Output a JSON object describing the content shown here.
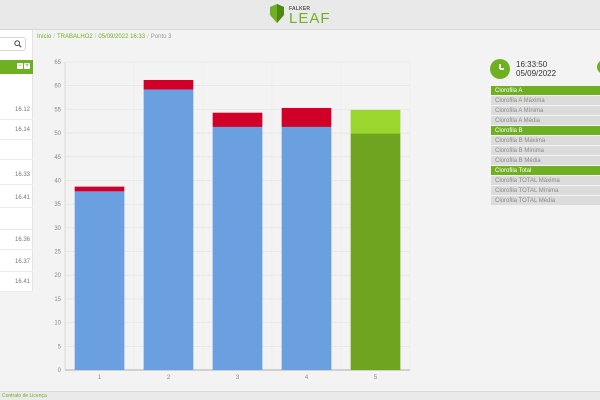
{
  "header": {
    "brand_top": "FALKER",
    "brand_main": "LEAF"
  },
  "sidebar": {
    "items": [
      {
        "value": "16.12"
      },
      {
        "value": "16.14"
      },
      {
        "value": ""
      },
      {
        "value": "16.33"
      },
      {
        "value": "16.41"
      },
      {
        "value": ""
      },
      {
        "value": "16.36"
      },
      {
        "value": "16.37"
      },
      {
        "value": "16.41"
      }
    ]
  },
  "breadcrumb": {
    "items": [
      "Início",
      "TRABALHO2",
      "05/09/2022 16:33",
      "Ponto 3"
    ]
  },
  "info": {
    "time": "16:33:50",
    "date": "05/09/2022"
  },
  "legend": [
    {
      "label": "Clorofila A",
      "kind": "header"
    },
    {
      "label": "Clorofila A Máxima",
      "kind": "item"
    },
    {
      "label": "Clorofila A Mínima",
      "kind": "item"
    },
    {
      "label": "Clorofila A Média",
      "kind": "item"
    },
    {
      "label": "Clorofila B",
      "kind": "header"
    },
    {
      "label": "Clorofila B Máxima",
      "kind": "item"
    },
    {
      "label": "Clorofila B Mínima",
      "kind": "item"
    },
    {
      "label": "Clorofila B Média",
      "kind": "item"
    },
    {
      "label": "Clorofila Total",
      "kind": "header"
    },
    {
      "label": "Clorofila TOTAL Máxima",
      "kind": "item"
    },
    {
      "label": "Clorofila TOTAL Mínima",
      "kind": "item"
    },
    {
      "label": "Clorofila TOTAL Média",
      "kind": "item"
    }
  ],
  "footer": {
    "link": "Contrato de Licença"
  },
  "colors": {
    "accent": "#6fb022",
    "bar_blue": "#6a9fe0",
    "bar_red": "#d10028",
    "bar_total_dark": "#6fa420",
    "bar_total_light": "#9ad62e"
  },
  "chart_data": {
    "type": "bar",
    "stacked": true,
    "categories": [
      "1",
      "2",
      "3",
      "4",
      "5"
    ],
    "ylim": [
      0,
      65
    ],
    "yticks": [
      0,
      5,
      10,
      15,
      20,
      25,
      30,
      35,
      40,
      45,
      50,
      55,
      60,
      65
    ],
    "grid": true,
    "series": [
      {
        "values": [
          37.7,
          59.2,
          51.3,
          51.3,
          0
        ],
        "color": "#6a9fe0"
      },
      {
        "values": [
          1.0,
          2.0,
          3.0,
          4.0,
          0
        ],
        "color": "#d10028"
      },
      {
        "values": [
          0,
          0,
          0,
          0,
          49.9
        ],
        "color": "#6fa420"
      },
      {
        "values": [
          0,
          0,
          0,
          0,
          5.0
        ],
        "color": "#9ad62e"
      }
    ]
  }
}
